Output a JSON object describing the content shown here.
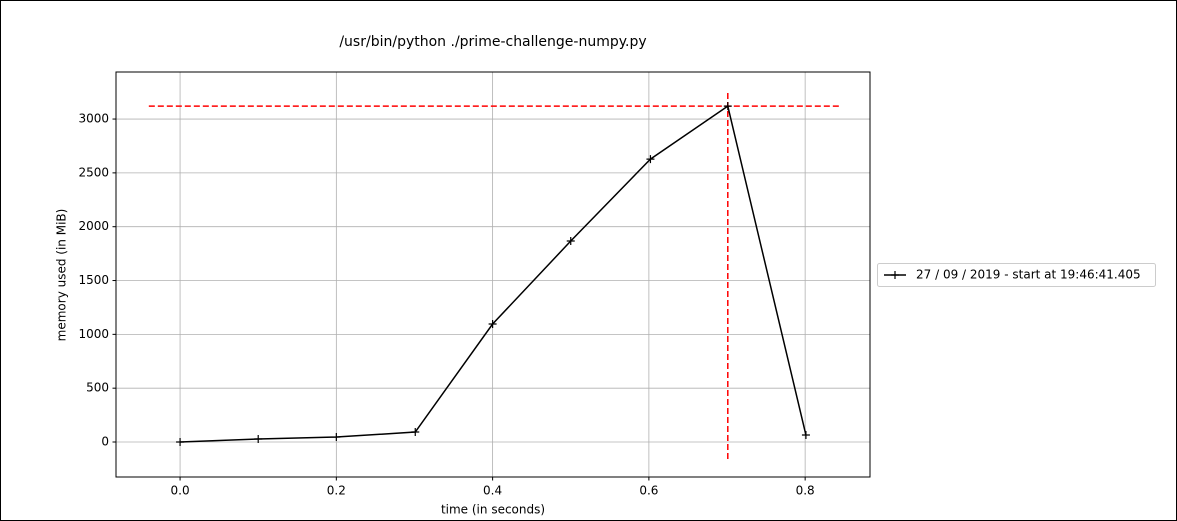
{
  "chart_data": {
    "type": "line",
    "title": "/usr/bin/python ./prime-challenge-numpy.py",
    "x_label": "time (in seconds)",
    "y_label": "memory used (in MiB)",
    "x": [
      0,
      0.1,
      0.2,
      0.301,
      0.4,
      0.5,
      0.602,
      0.701,
      0.801
    ],
    "series": [
      {
        "name": "27 / 09 / 2019 - start at 19:46:41.405",
        "color": "#000000",
        "values": [
          0,
          28,
          46,
          93,
          1096,
          1867,
          2628,
          3120,
          65
        ]
      }
    ],
    "xlim": [
      -0.082,
      0.883
    ],
    "ylim": [
      -325,
      3437
    ],
    "xticks": [
      {
        "value": 0,
        "label": "0.0"
      },
      0.2,
      0.4,
      0.6,
      0.8
    ],
    "yticks": [
      0,
      500,
      1000,
      1500,
      2000,
      2500,
      3000
    ],
    "grid": true,
    "legend": "right",
    "hline": {
      "y": 3120,
      "xmin": -0.04,
      "xmax": 0.844,
      "color": "#ff0000"
    },
    "vline": {
      "x": 0.701,
      "ymin": -158,
      "ymax": 3269,
      "color": "#ff0000"
    }
  }
}
